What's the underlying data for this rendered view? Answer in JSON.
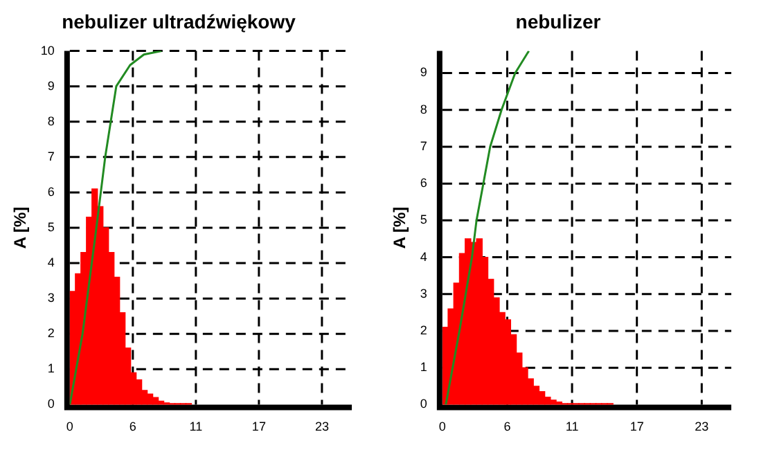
{
  "chart_data": [
    {
      "type": "histogram",
      "title": "nebulizer ultradźwiękowy",
      "ylabel": "A [%]",
      "color": "#ff0000",
      "bins": [
        0,
        0.5,
        1,
        1.5,
        2,
        2.5,
        3,
        3.5,
        4,
        4.5,
        5,
        5.5,
        6,
        6.5,
        7,
        7.5,
        8,
        8.5,
        9,
        9.5,
        10,
        10.5,
        11
      ],
      "values": [
        3.2,
        3.7,
        4.3,
        5.3,
        6.1,
        5.6,
        5.0,
        4.3,
        3.6,
        2.6,
        1.6,
        0.9,
        0.7,
        0.4,
        0.3,
        0.2,
        0.1,
        0.05,
        0.03,
        0.03,
        0.03,
        0.03
      ],
      "series": [
        {
          "type": "line",
          "color": "#228b22",
          "x": [
            0,
            1.15,
            2.4,
            3.2,
            4.2,
            5.45,
            6.7,
            8.3
          ],
          "values": [
            0,
            2,
            5,
            7,
            9,
            9.6,
            9.9,
            10
          ]
        }
      ],
      "xlim": [
        0,
        25.5
      ],
      "xticks": [
        0,
        {
          "value": 5.7,
          "label": "6"
        },
        {
          "value": 11.4,
          "label": "11"
        },
        {
          "value": 17.1,
          "label": "17"
        },
        {
          "value": 22.8,
          "label": "23"
        }
      ],
      "ylim": [
        0,
        10
      ],
      "yticks": [
        0,
        1,
        2,
        3,
        4,
        5,
        6,
        7,
        8,
        9,
        10
      ],
      "grid": true
    },
    {
      "type": "histogram",
      "title": "nebulizer",
      "ylabel": "A [%]",
      "color": "#ff0000",
      "bins": [
        0,
        0.5,
        1,
        1.5,
        2,
        2.5,
        3,
        3.5,
        4,
        4.5,
        5,
        5.5,
        6,
        6.5,
        7,
        7.5,
        8,
        8.5,
        9,
        9.5,
        10,
        10.5,
        11,
        11.5,
        12,
        12.5,
        13,
        13.5,
        14,
        14.5,
        15
      ],
      "values": [
        2.1,
        2.6,
        3.3,
        4.1,
        4.5,
        4.4,
        4.5,
        4.0,
        3.4,
        2.9,
        2.5,
        2.3,
        1.9,
        1.4,
        1.0,
        0.7,
        0.5,
        0.35,
        0.2,
        0.12,
        0.07,
        0.03,
        0.03,
        0.03,
        0.03,
        0.03,
        0.03,
        0.03,
        0.03,
        0.03
      ],
      "series": [
        {
          "type": "line",
          "color": "#228b22",
          "x": [
            0.3,
            1.5,
            2.6,
            3.0,
            3.6,
            4.2,
            5.2,
            6.4,
            7.6
          ],
          "values": [
            0,
            2,
            4,
            5,
            6,
            7,
            8,
            9,
            9.6
          ]
        }
      ],
      "xlim": [
        0,
        25.4
      ],
      "xticks": [
        0,
        {
          "value": 5.7,
          "label": "6"
        },
        {
          "value": 11.4,
          "label": "11"
        },
        {
          "value": 17.1,
          "label": "17"
        },
        {
          "value": 22.8,
          "label": "23"
        }
      ],
      "ylim": [
        0,
        9.6
      ],
      "yticks": [
        0,
        1,
        2,
        3,
        4,
        5,
        6,
        7,
        8,
        9
      ],
      "grid": true
    }
  ]
}
